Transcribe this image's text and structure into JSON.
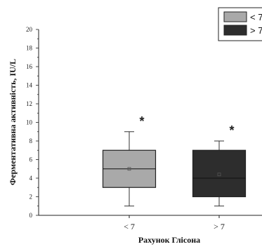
{
  "chart_data": {
    "type": "box",
    "xlabel": "Рахунок Глісона",
    "ylabel": "Ферментативна активність, IU/L",
    "ylim": [
      0,
      20
    ],
    "y_major_ticks": [
      0,
      2,
      4,
      6,
      8,
      10,
      12,
      14,
      16,
      18,
      20
    ],
    "categories": [
      "< 7",
      "> 7"
    ],
    "series": [
      {
        "name": "< 7",
        "color": "#a9a9a9",
        "whisker_low": 1,
        "q1": 3,
        "median": 5,
        "q3": 7,
        "whisker_high": 9,
        "mean": 5,
        "annotation": "*"
      },
      {
        "name": "> 7",
        "color": "#2d2d2d",
        "whisker_low": 1,
        "q1": 2,
        "median": 4,
        "q3": 7,
        "whisker_high": 8,
        "mean": 4.4,
        "annotation": "*"
      }
    ],
    "legend": {
      "position": "top-right",
      "entries": [
        {
          "label": "< 7",
          "color": "#a9a9a9"
        },
        {
          "label": "> 7",
          "color": "#2d2d2d"
        }
      ]
    }
  }
}
